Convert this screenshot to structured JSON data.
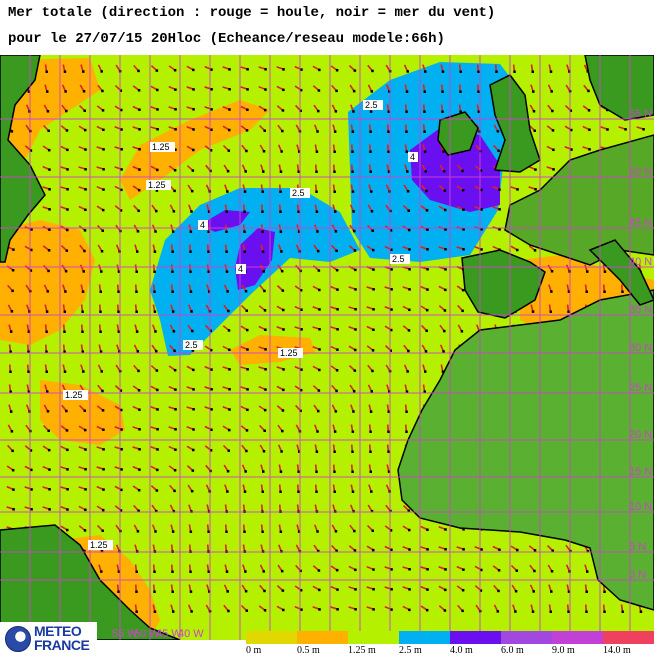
{
  "header": {
    "title": "Mer totale (direction : rouge = houle, noir = mer du vent)",
    "subtitle": "pour le 27/07/15 20Hloc (Echeance/reseau modele:66h)"
  },
  "logo": {
    "text_line1": "METEO",
    "text_line2": "FRANCE"
  },
  "colors": {
    "ocean_default": "#b4f000",
    "swell_arrow": "#e02020",
    "wind_sea_arrow": "#000000",
    "grid": "#d040d0",
    "land": "#3a9a20"
  },
  "legend": {
    "unit": "m",
    "bins": [
      {
        "from": "0 m",
        "color": "#e0d800"
      },
      {
        "from": "0.5 m",
        "color": "#ffb000"
      },
      {
        "from": "1.25 m",
        "color": "#b4f000"
      },
      {
        "from": "2.5 m",
        "color": "#00b0f0"
      },
      {
        "from": "4.0 m",
        "color": "#6a10f0"
      },
      {
        "from": "6.0 m",
        "color": "#a048e0"
      },
      {
        "from": "9.0 m",
        "color": "#c040d8"
      },
      {
        "from": "14.0 m",
        "color": "#f04060"
      }
    ]
  },
  "contour_labels": [
    "2.5",
    "1.25",
    "1.25",
    "2.5",
    "4",
    "4",
    "4",
    "2.5",
    "2.5",
    "1.25",
    "1.25",
    "1.25"
  ],
  "lat_labels": [
    "55 N",
    "50 N",
    "45 N",
    "40 N",
    "35 N",
    "30 N",
    "25 N",
    "20 N",
    "15 N",
    "10 N",
    "5 N",
    "0 N"
  ],
  "lon_labels": [
    "55 W",
    "50 W",
    "45 W",
    "40 W"
  ]
}
